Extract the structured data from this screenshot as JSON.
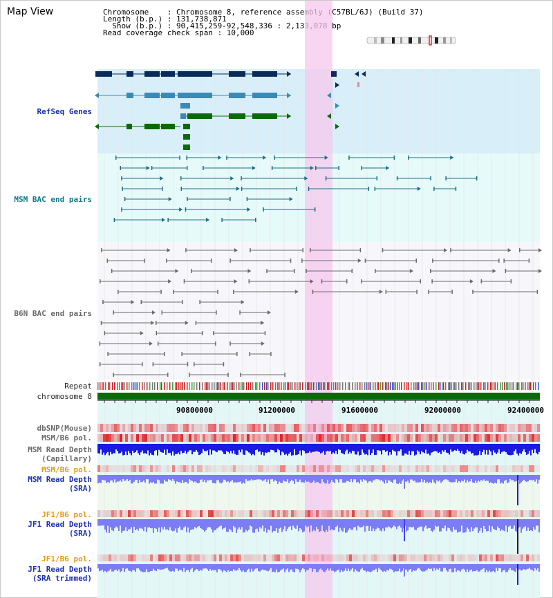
{
  "title": "Map View",
  "info": {
    "chromosome": "Chromosome    : Chromosome 8, reference assembly (C57BL/6J) (Build 37)",
    "length": "Length (b.p.) : 131,738,871",
    "show": "  Show (b.p.) : 90,415,259-92,548,336 : 2,133,078 bp",
    "coverage": "Read coverage check span : 10,000"
  },
  "tracks": {
    "refseq": "RefSeq Genes",
    "msm_bac": "MSM BAC end pairs",
    "b6n_bac": "B6N BAC end pairs",
    "repeat": "Repeat",
    "chromosome": "chromosome 8",
    "dbsnp": "dbSNP(Mouse)",
    "msm_b6_pol_1": "MSM/B6 pol.",
    "msm_read_depth_cap": "MSM Read Depth",
    "msm_read_depth_cap_sub": "(Capillary)",
    "msm_b6_pol_2": "MSM/B6 pol.",
    "msm_read_depth_sra": "MSM Read Depth",
    "msm_read_depth_sra_sub": "(SRA)",
    "jf1_b6_pol_1": "JF1/B6 pol.",
    "jf1_read_depth_sra": "JF1 Read Depth",
    "jf1_read_depth_sra_sub": "(SRA)",
    "jf1_b6_pol_2": "JF1/B6 pol.",
    "jf1_read_depth_trim": "JF1 Read Depth",
    "jf1_read_depth_trim_sub": "(SRA trimmed)"
  },
  "axis": {
    "ticks": [
      "90800000",
      "91200000",
      "91600000",
      "92000000",
      "92400000"
    ]
  },
  "colors": {
    "refseq_bg": "#d8eef8",
    "bac_bg": "#e6fafa",
    "highlight": "#f6c8ee",
    "gene_dark": "#0a2a5a",
    "gene_mid": "#3a8ab8",
    "gene_green": "#0a6a0a",
    "msm_line": "#1a6e84",
    "b6n_line": "#6a6a6a",
    "chrom_bar": "#0a6a0a",
    "snp": "#e8505a",
    "depth_dark": "#1a1ae0",
    "depth_light": "#7c7cf4"
  }
}
